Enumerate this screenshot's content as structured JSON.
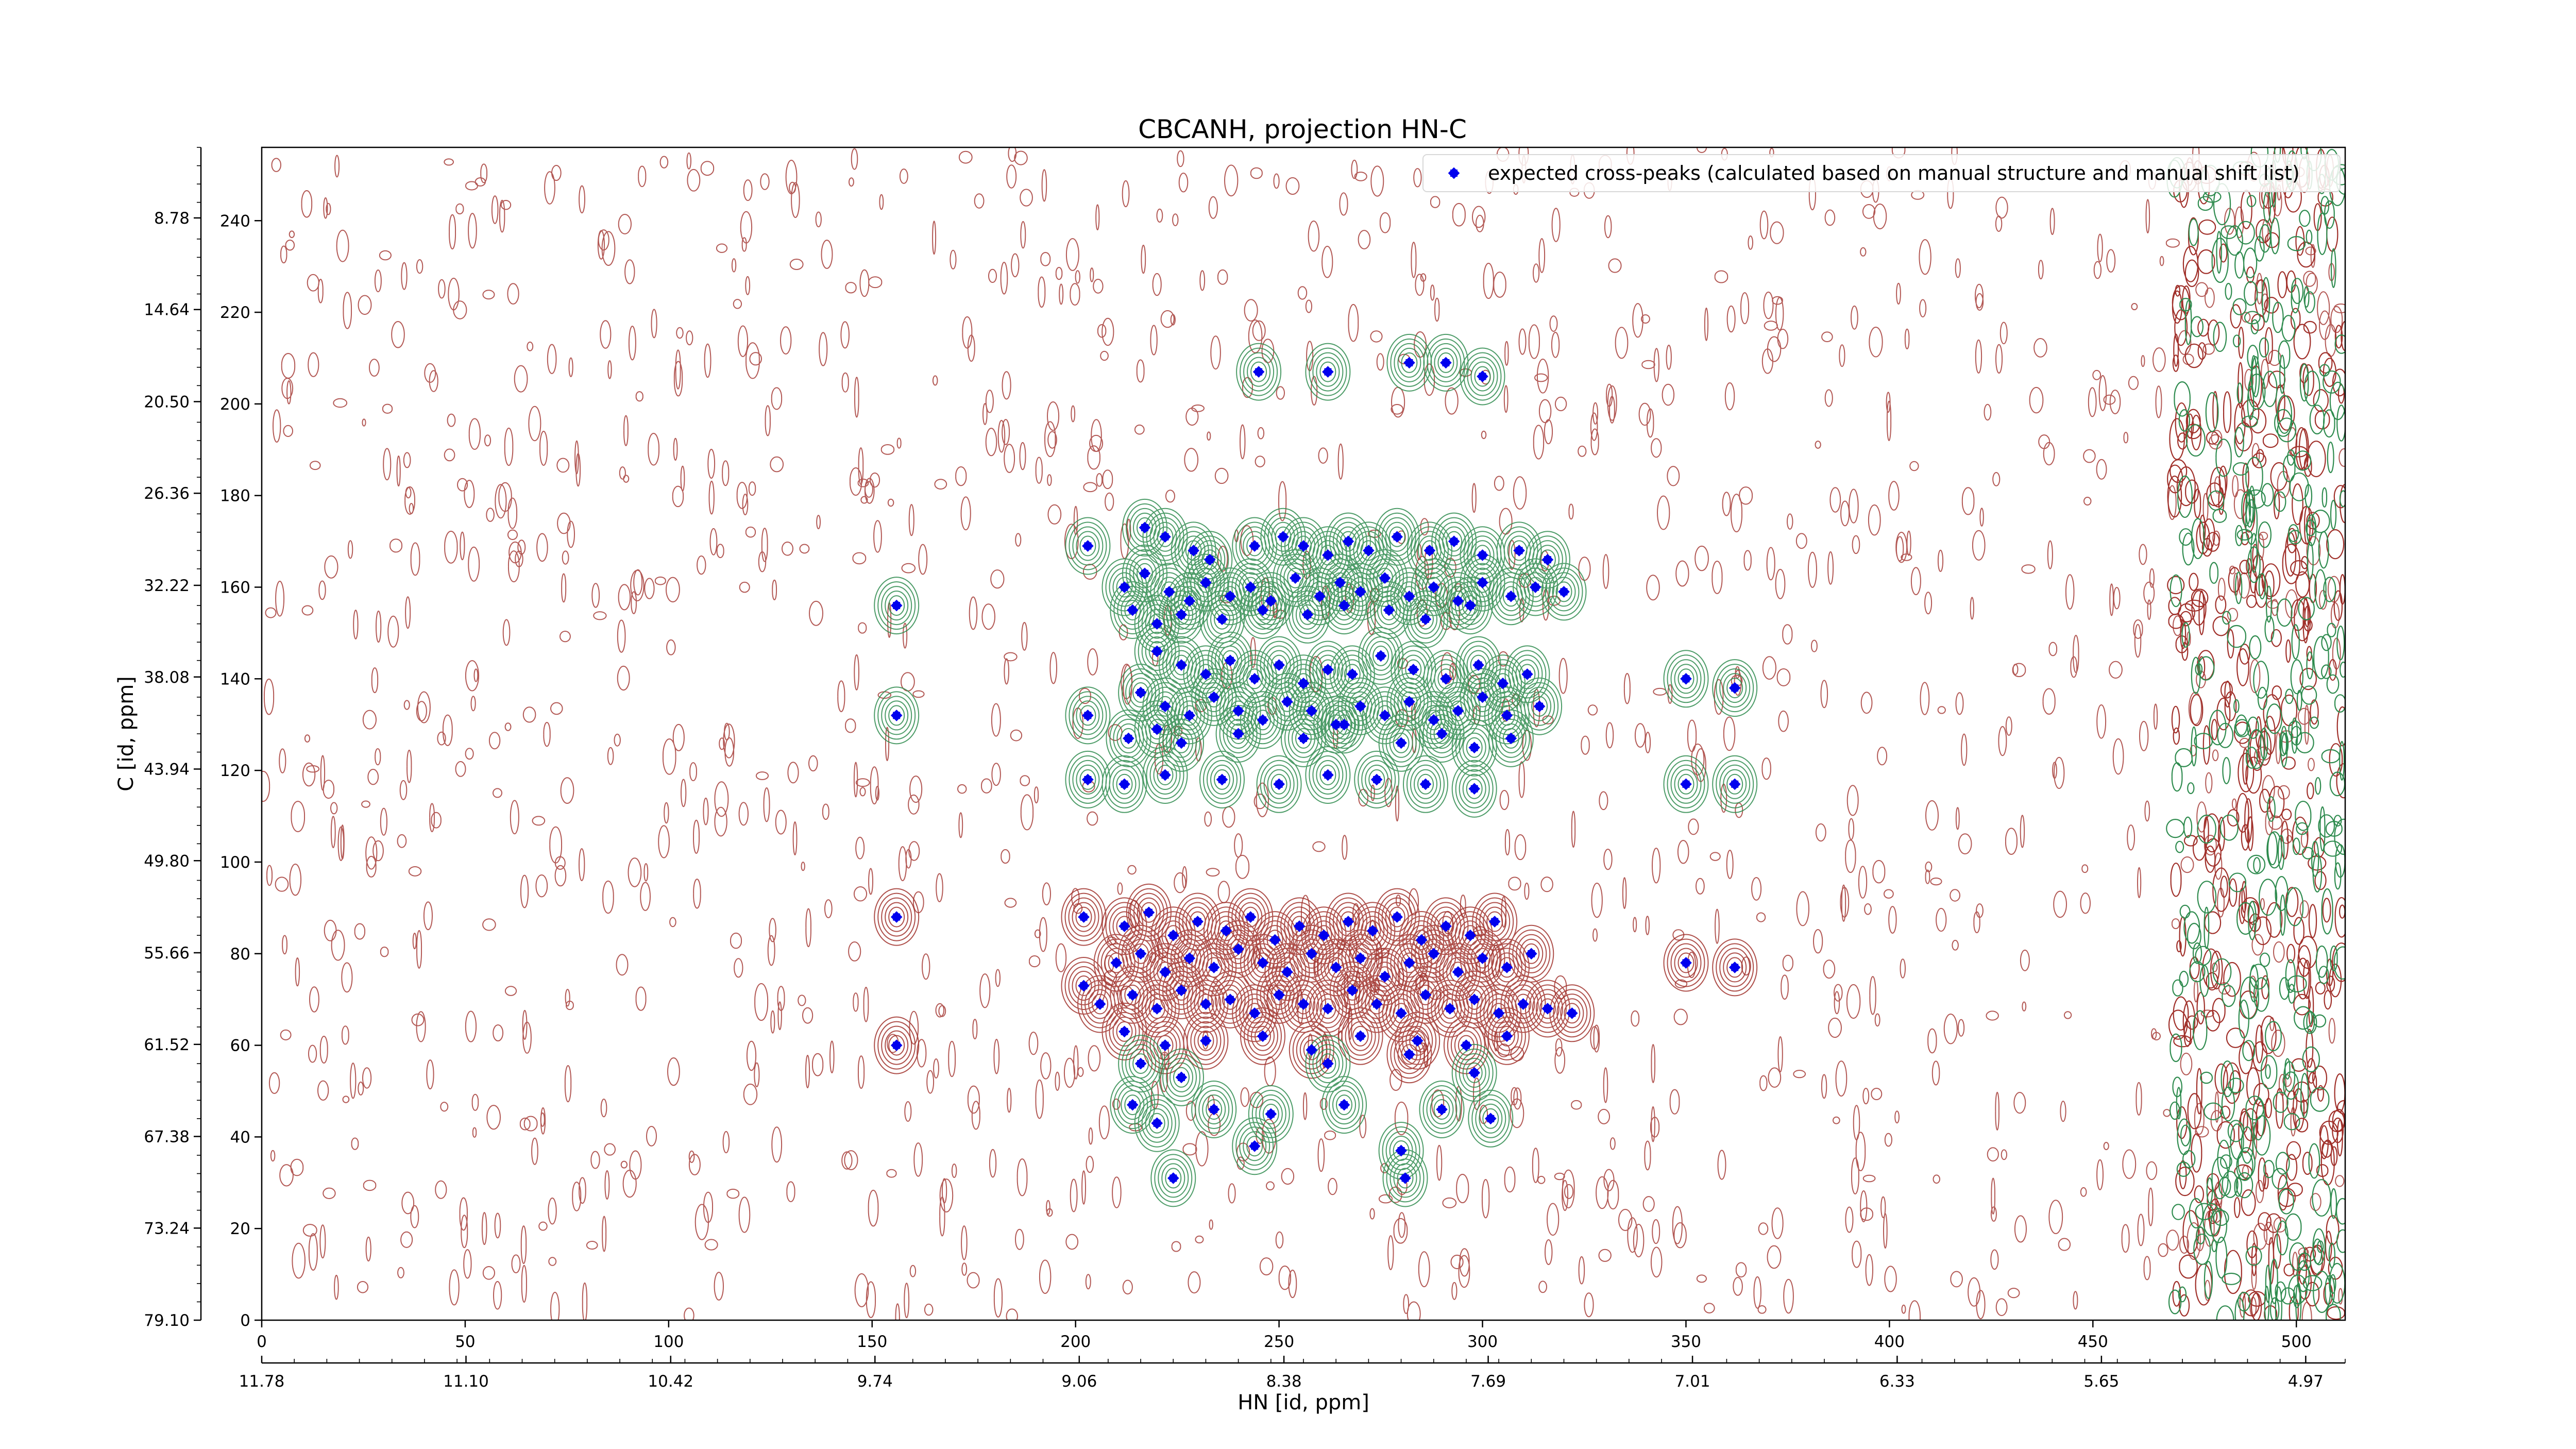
{
  "chart_data": {
    "type": "scatter",
    "title": "CBCANH, projection HN-C",
    "xlabel": "HN [id, ppm]",
    "ylabel": "C [id, ppm]",
    "xlim": [
      0,
      512
    ],
    "ylim": [
      0,
      256
    ],
    "x_ticks": [
      0,
      50,
      100,
      150,
      200,
      250,
      300,
      350,
      400,
      450,
      500
    ],
    "y_ticks": [
      0,
      20,
      40,
      60,
      80,
      100,
      120,
      140,
      160,
      180,
      200,
      220,
      240
    ],
    "x_ppm_ticks": [
      {
        "pos": 0,
        "label": "11.78"
      },
      {
        "pos": 50.2,
        "label": "11.10"
      },
      {
        "pos": 100.5,
        "label": "10.42"
      },
      {
        "pos": 150.7,
        "label": "9.74"
      },
      {
        "pos": 200.9,
        "label": "9.06"
      },
      {
        "pos": 251.2,
        "label": "8.38"
      },
      {
        "pos": 301.4,
        "label": "7.69"
      },
      {
        "pos": 351.6,
        "label": "7.01"
      },
      {
        "pos": 401.9,
        "label": "6.33"
      },
      {
        "pos": 452.1,
        "label": "5.65"
      },
      {
        "pos": 502.3,
        "label": "4.97"
      }
    ],
    "y_ppm_ticks": [
      {
        "pos": 0,
        "label": "79.10"
      },
      {
        "pos": 20.1,
        "label": "73.24"
      },
      {
        "pos": 40.1,
        "label": "67.38"
      },
      {
        "pos": 60.2,
        "label": "61.52"
      },
      {
        "pos": 80.2,
        "label": "55.66"
      },
      {
        "pos": 100.3,
        "label": "49.80"
      },
      {
        "pos": 120.3,
        "label": "43.94"
      },
      {
        "pos": 140.4,
        "label": "38.08"
      },
      {
        "pos": 160.4,
        "label": "32.22"
      },
      {
        "pos": 180.5,
        "label": "26.36"
      },
      {
        "pos": 200.5,
        "label": "20.50"
      },
      {
        "pos": 220.6,
        "label": "14.64"
      },
      {
        "pos": 240.6,
        "label": "8.78"
      }
    ],
    "grid": false,
    "legend": {
      "position": "top-right",
      "entries": [
        "expected cross-peaks (calculated based on manual structure and manual shift list)"
      ]
    },
    "colors": {
      "marker": "#0000ee",
      "positive_contour": "#a0302a",
      "negative_contour": "#2e8b4e"
    },
    "series": [
      {
        "name": "expected cross-peaks (calculated based on manual structure and manual shift list)",
        "points": [
          [
            245,
            207
          ],
          [
            262,
            207
          ],
          [
            282,
            209
          ],
          [
            291,
            209
          ],
          [
            300,
            206
          ],
          [
            203,
            169
          ],
          [
            217,
            173
          ],
          [
            222,
            171
          ],
          [
            229,
            168
          ],
          [
            233,
            166
          ],
          [
            244,
            169
          ],
          [
            251,
            171
          ],
          [
            256,
            169
          ],
          [
            262,
            167
          ],
          [
            267,
            170
          ],
          [
            272,
            168
          ],
          [
            279,
            171
          ],
          [
            287,
            168
          ],
          [
            293,
            170
          ],
          [
            300,
            167
          ],
          [
            309,
            168
          ],
          [
            316,
            166
          ],
          [
            212,
            160
          ],
          [
            217,
            163
          ],
          [
            223,
            159
          ],
          [
            228,
            157
          ],
          [
            232,
            161
          ],
          [
            238,
            158
          ],
          [
            243,
            160
          ],
          [
            248,
            157
          ],
          [
            254,
            162
          ],
          [
            260,
            158
          ],
          [
            265,
            161
          ],
          [
            270,
            159
          ],
          [
            276,
            162
          ],
          [
            282,
            158
          ],
          [
            288,
            160
          ],
          [
            294,
            157
          ],
          [
            300,
            161
          ],
          [
            307,
            158
          ],
          [
            313,
            160
          ],
          [
            320,
            159
          ],
          [
            214,
            155
          ],
          [
            220,
            152
          ],
          [
            226,
            154
          ],
          [
            236,
            153
          ],
          [
            246,
            155
          ],
          [
            257,
            154
          ],
          [
            266,
            156
          ],
          [
            277,
            155
          ],
          [
            286,
            153
          ],
          [
            297,
            156
          ],
          [
            156,
            156
          ],
          [
            220,
            146
          ],
          [
            226,
            143
          ],
          [
            232,
            141
          ],
          [
            238,
            144
          ],
          [
            244,
            140
          ],
          [
            250,
            143
          ],
          [
            256,
            139
          ],
          [
            262,
            142
          ],
          [
            268,
            141
          ],
          [
            275,
            145
          ],
          [
            283,
            142
          ],
          [
            291,
            140
          ],
          [
            299,
            143
          ],
          [
            305,
            139
          ],
          [
            311,
            141
          ],
          [
            216,
            137
          ],
          [
            222,
            134
          ],
          [
            228,
            132
          ],
          [
            234,
            136
          ],
          [
            240,
            133
          ],
          [
            246,
            131
          ],
          [
            252,
            135
          ],
          [
            258,
            133
          ],
          [
            264,
            130
          ],
          [
            270,
            134
          ],
          [
            276,
            132
          ],
          [
            282,
            135
          ],
          [
            288,
            131
          ],
          [
            294,
            133
          ],
          [
            300,
            136
          ],
          [
            306,
            132
          ],
          [
            314,
            134
          ],
          [
            203,
            132
          ],
          [
            156,
            132
          ],
          [
            350,
            140
          ],
          [
            362,
            138
          ],
          [
            213,
            127
          ],
          [
            220,
            129
          ],
          [
            226,
            126
          ],
          [
            240,
            128
          ],
          [
            256,
            127
          ],
          [
            266,
            130
          ],
          [
            280,
            126
          ],
          [
            290,
            128
          ],
          [
            298,
            125
          ],
          [
            307,
            127
          ],
          [
            203,
            118
          ],
          [
            212,
            117
          ],
          [
            222,
            119
          ],
          [
            236,
            118
          ],
          [
            250,
            117
          ],
          [
            262,
            119
          ],
          [
            274,
            118
          ],
          [
            286,
            117
          ],
          [
            298,
            116
          ],
          [
            350,
            117
          ],
          [
            362,
            117
          ],
          [
            202,
            88
          ],
          [
            212,
            86
          ],
          [
            218,
            89
          ],
          [
            224,
            84
          ],
          [
            230,
            87
          ],
          [
            237,
            85
          ],
          [
            243,
            88
          ],
          [
            249,
            83
          ],
          [
            255,
            86
          ],
          [
            261,
            84
          ],
          [
            267,
            87
          ],
          [
            273,
            85
          ],
          [
            279,
            88
          ],
          [
            285,
            83
          ],
          [
            291,
            86
          ],
          [
            297,
            84
          ],
          [
            303,
            87
          ],
          [
            156,
            88
          ],
          [
            350,
            78
          ],
          [
            362,
            77
          ],
          [
            210,
            78
          ],
          [
            216,
            80
          ],
          [
            222,
            76
          ],
          [
            228,
            79
          ],
          [
            234,
            77
          ],
          [
            240,
            81
          ],
          [
            246,
            78
          ],
          [
            252,
            76
          ],
          [
            258,
            80
          ],
          [
            264,
            77
          ],
          [
            270,
            79
          ],
          [
            276,
            75
          ],
          [
            282,
            78
          ],
          [
            288,
            80
          ],
          [
            294,
            76
          ],
          [
            300,
            79
          ],
          [
            306,
            77
          ],
          [
            312,
            80
          ],
          [
            214,
            71
          ],
          [
            220,
            68
          ],
          [
            226,
            72
          ],
          [
            232,
            69
          ],
          [
            238,
            70
          ],
          [
            244,
            67
          ],
          [
            250,
            71
          ],
          [
            256,
            69
          ],
          [
            262,
            68
          ],
          [
            268,
            72
          ],
          [
            274,
            69
          ],
          [
            280,
            67
          ],
          [
            286,
            71
          ],
          [
            292,
            68
          ],
          [
            298,
            70
          ],
          [
            304,
            67
          ],
          [
            310,
            69
          ],
          [
            316,
            68
          ],
          [
            322,
            67
          ],
          [
            202,
            73
          ],
          [
            206,
            69
          ],
          [
            156,
            60
          ],
          [
            212,
            63
          ],
          [
            222,
            60
          ],
          [
            232,
            61
          ],
          [
            246,
            62
          ],
          [
            258,
            59
          ],
          [
            270,
            62
          ],
          [
            284,
            61
          ],
          [
            296,
            60
          ],
          [
            306,
            62
          ],
          [
            216,
            56
          ],
          [
            226,
            53
          ],
          [
            262,
            56
          ],
          [
            282,
            58
          ],
          [
            298,
            54
          ],
          [
            214,
            47
          ],
          [
            220,
            43
          ],
          [
            234,
            46
          ],
          [
            248,
            45
          ],
          [
            266,
            47
          ],
          [
            290,
            46
          ],
          [
            302,
            44
          ],
          [
            244,
            38
          ],
          [
            280,
            37
          ],
          [
            224,
            31
          ],
          [
            281,
            31
          ]
        ]
      }
    ]
  }
}
